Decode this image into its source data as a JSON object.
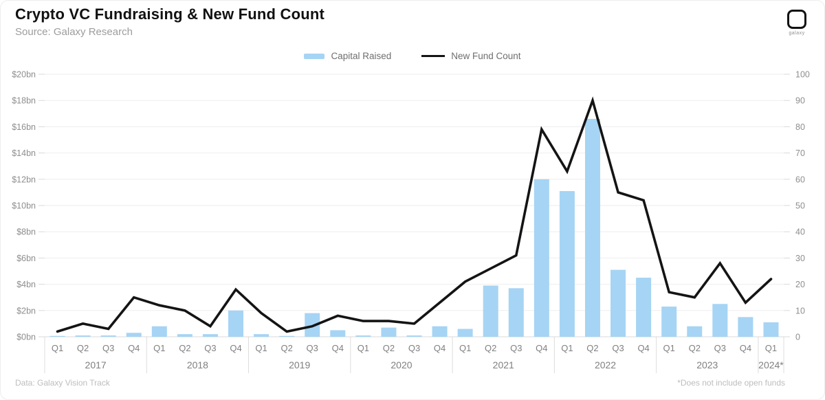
{
  "header": {
    "title": "Crypto VC Fundraising & New Fund Count",
    "source": "Source: Galaxy Research",
    "logo_text": "galaxy"
  },
  "footer": {
    "left": "Data: Galaxy Vision Track",
    "right": "*Does not include open funds"
  },
  "colors": {
    "bar": "#a6d4f4",
    "line": "#141414",
    "gridline": "#ededed",
    "axis": "#d9d9d9",
    "tick_text": "#8e8e8e"
  },
  "chart_data": {
    "type": "bar",
    "subtype": "combo-bar-line",
    "title": "Crypto VC Fundraising & New Fund Count",
    "categories": [
      {
        "year": "2017",
        "quarters": [
          "Q1",
          "Q2",
          "Q3",
          "Q4"
        ]
      },
      {
        "year": "2018",
        "quarters": [
          "Q1",
          "Q2",
          "Q3",
          "Q4"
        ]
      },
      {
        "year": "2019",
        "quarters": [
          "Q1",
          "Q2",
          "Q3",
          "Q4"
        ]
      },
      {
        "year": "2020",
        "quarters": [
          "Q1",
          "Q2",
          "Q3",
          "Q4"
        ]
      },
      {
        "year": "2021",
        "quarters": [
          "Q1",
          "Q2",
          "Q3",
          "Q4"
        ]
      },
      {
        "year": "2022",
        "quarters": [
          "Q1",
          "Q2",
          "Q3",
          "Q4"
        ]
      },
      {
        "year": "2023",
        "quarters": [
          "Q1",
          "Q2",
          "Q3",
          "Q4"
        ]
      },
      {
        "year": "2024*",
        "quarters": [
          "Q1"
        ]
      }
    ],
    "series": [
      {
        "name": "Capital Raised",
        "type": "bar",
        "axis": "left",
        "unit": "$bn",
        "color": "#a6d4f4",
        "values": [
          0.05,
          0.1,
          0.1,
          0.3,
          0.8,
          0.2,
          0.2,
          2.0,
          0.2,
          0.05,
          1.8,
          0.5,
          0.1,
          0.7,
          0.1,
          0.8,
          0.6,
          3.9,
          3.7,
          12.0,
          11.1,
          16.6,
          5.1,
          4.5,
          2.3,
          0.8,
          2.5,
          1.5,
          1.1
        ]
      },
      {
        "name": "New Fund Count",
        "type": "line",
        "axis": "right",
        "unit": "funds",
        "color": "#141414",
        "values": [
          2,
          5,
          3,
          15,
          12,
          10,
          4,
          18,
          9,
          2,
          4,
          8,
          6,
          6,
          5,
          13,
          21,
          26,
          31,
          79,
          63,
          90,
          55,
          52,
          17,
          15,
          28,
          13,
          22
        ]
      }
    ],
    "left_axis": {
      "min": 0,
      "max": 20,
      "step": 2,
      "ticks": [
        "$0bn",
        "$2bn",
        "$4bn",
        "$6bn",
        "$8bn",
        "$10bn",
        "$12bn",
        "$14bn",
        "$16bn",
        "$18bn",
        "$20bn"
      ]
    },
    "right_axis": {
      "min": 0,
      "max": 100,
      "step": 10,
      "ticks": [
        "0",
        "10",
        "20",
        "30",
        "40",
        "50",
        "60",
        "70",
        "80",
        "90",
        "100"
      ]
    },
    "grid": true,
    "legend_position": "top-center"
  }
}
